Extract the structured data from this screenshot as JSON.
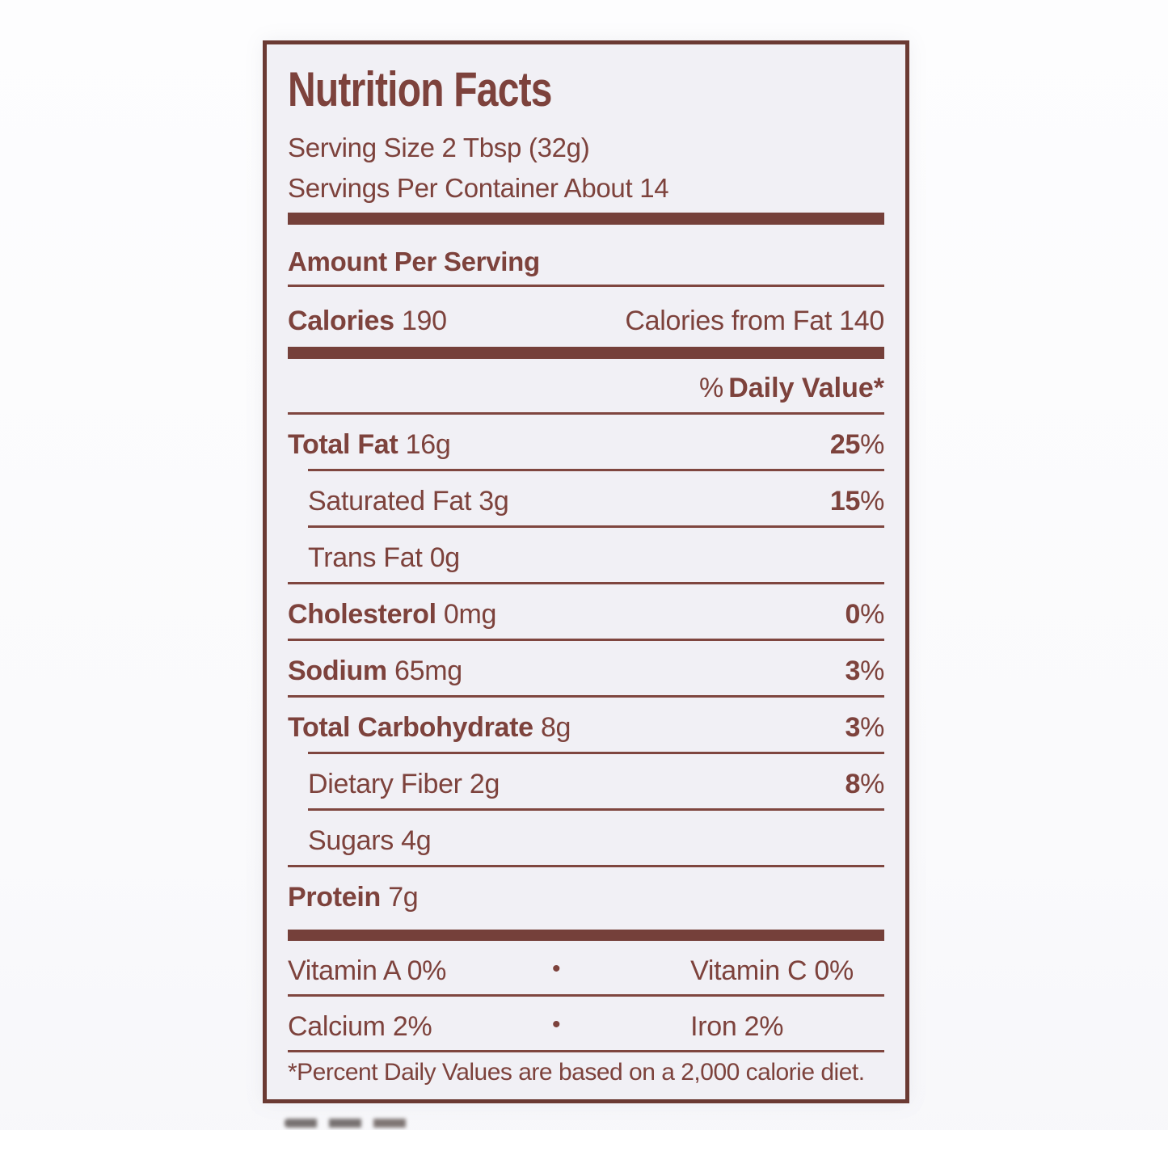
{
  "label": {
    "title": "Nutrition Facts",
    "serving_size": "Serving Size 2 Tbsp (32g)",
    "servings_per_container": "Servings Per Container About 14",
    "amount_per_serving": "Amount Per Serving",
    "calories": {
      "label": "Calories",
      "value": "190"
    },
    "calories_from_fat": "Calories from Fat 140",
    "daily_value_header": {
      "prefix": "%",
      "label": "Daily Value*"
    },
    "nutrients": [
      {
        "name": "Total Fat",
        "amount": "16g",
        "pct": "25",
        "pct_unit": "%",
        "bold": true,
        "indent": false,
        "rule": "indent"
      },
      {
        "name": "Saturated Fat",
        "amount": "3g",
        "pct": "15",
        "pct_unit": "%",
        "bold": false,
        "indent": true,
        "rule": "indent"
      },
      {
        "name": "Trans Fat",
        "amount": "0g",
        "pct": "",
        "pct_unit": "",
        "bold": false,
        "indent": true,
        "rule": "full"
      },
      {
        "name": "Cholesterol",
        "amount": "0mg",
        "pct": "0",
        "pct_unit": "%",
        "bold": true,
        "indent": false,
        "rule": "full"
      },
      {
        "name": "Sodium",
        "amount": "65mg",
        "pct": "3",
        "pct_unit": "%",
        "bold": true,
        "indent": false,
        "rule": "full"
      },
      {
        "name": "Total Carbohydrate",
        "amount": "8g",
        "pct": "3",
        "pct_unit": "%",
        "bold": true,
        "indent": false,
        "rule": "indent"
      },
      {
        "name": "Dietary Fiber",
        "amount": "2g",
        "pct": "8",
        "pct_unit": "%",
        "bold": false,
        "indent": true,
        "rule": "indent"
      },
      {
        "name": "Sugars",
        "amount": "4g",
        "pct": "",
        "pct_unit": "",
        "bold": false,
        "indent": true,
        "rule": "full"
      },
      {
        "name": "Protein",
        "amount": "7g",
        "pct": "",
        "pct_unit": "",
        "bold": true,
        "indent": false,
        "rule": "none"
      }
    ],
    "micronutrients": [
      {
        "left": "Vitamin A 0%",
        "bullet": "•",
        "right": "Vitamin C 0%"
      },
      {
        "left": "Calcium 2%",
        "bullet": "•",
        "right": "Iron 2%"
      }
    ],
    "footnote": "*Percent Daily Values are based on a 2,000 calorie diet.",
    "colors": {
      "text": "#7d423c",
      "thick_bar": "#75403a",
      "thin_rule": "#7f463f",
      "border": "#6b3a33",
      "paper": "#f1f0f5",
      "photo_background": "#fbfbfd"
    }
  }
}
